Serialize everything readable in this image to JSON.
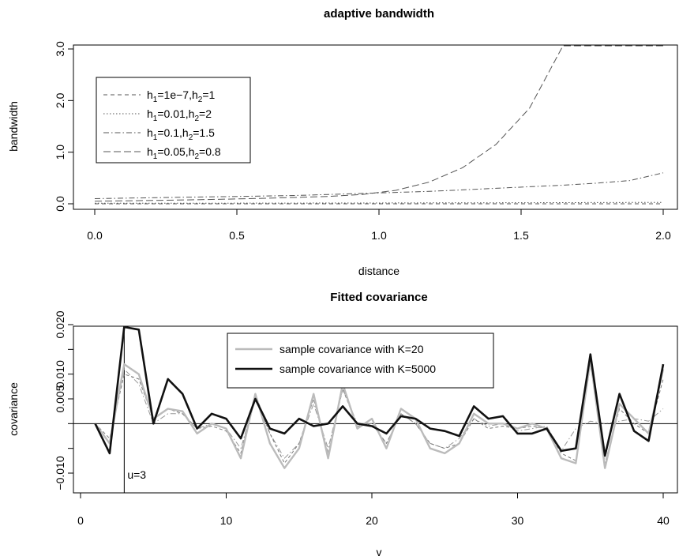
{
  "chart_data": [
    {
      "type": "line",
      "title": "adaptive bandwidth",
      "xlabel": "distance",
      "ylabel": "bandwidth",
      "xlim": [
        0,
        2
      ],
      "ylim": [
        0,
        3
      ],
      "xticks": [
        "0.0",
        "0.5",
        "1.0",
        "1.5",
        "2.0"
      ],
      "yticks": [
        "0.0",
        "1.0",
        "2.0",
        "3.0"
      ],
      "grid": false,
      "legend_position": "top-left",
      "x": [
        0,
        0.1176,
        0.2353,
        0.3529,
        0.4706,
        0.5882,
        0.7059,
        0.8235,
        0.9412,
        1.0588,
        1.1765,
        1.2941,
        1.4118,
        1.5294,
        1.6471,
        1.7647,
        1.8824,
        2.0
      ],
      "series": [
        {
          "name": "h1=1e−7,h2=1",
          "legend_parts": [
            "h",
            "1",
            "=1e−7,h",
            "2",
            "=1"
          ],
          "dash": "5,4",
          "color": "#555555",
          "values": [
            0.0,
            0.0,
            0.0,
            0.0,
            0.0,
            0.0,
            0.0,
            0.0,
            0.0,
            0.0,
            0.0,
            0.0,
            0.0,
            0.0,
            0.0,
            0.0,
            0.0,
            0.0
          ]
        },
        {
          "name": "h1=0.01,h2=2",
          "legend_parts": [
            "h",
            "1",
            "=0.01,h",
            "2",
            "=2"
          ],
          "dash": "1.5,2.5",
          "color": "#555555",
          "values": [
            0.01,
            0.0106,
            0.0113,
            0.0119,
            0.0127,
            0.0134,
            0.0142,
            0.0151,
            0.016,
            0.017,
            0.018,
            0.0191,
            0.0203,
            0.0215,
            0.0228,
            0.0242,
            0.0256,
            0.0272
          ]
        },
        {
          "name": "h1=0.1,h2=1.5",
          "legend_parts": [
            "h",
            "1",
            "=0.1,h",
            "2",
            "=1.5"
          ],
          "dash": "7,3,1.5,3",
          "color": "#555555",
          "values": [
            0.1,
            0.11,
            0.12,
            0.13,
            0.14,
            0.15,
            0.16,
            0.18,
            0.2,
            0.22,
            0.24,
            0.27,
            0.3,
            0.33,
            0.36,
            0.4,
            0.45,
            0.6
          ]
        },
        {
          "name": "h1=0.05,h2=0.8",
          "legend_parts": [
            "h",
            "1",
            "=0.05,h",
            "2",
            "=0.8"
          ],
          "dash": "9,4",
          "color": "#555555",
          "values": [
            0.05,
            0.058,
            0.067,
            0.078,
            0.09,
            0.105,
            0.122,
            0.142,
            0.18,
            0.26,
            0.42,
            0.7,
            1.15,
            1.85,
            3.1,
            3.1,
            3.1,
            3.1
          ]
        }
      ]
    },
    {
      "type": "line",
      "title": "Fitted covariance",
      "xlabel": "v",
      "ylabel": "covariance",
      "xlim": [
        0,
        40
      ],
      "ylim": [
        -0.013,
        0.022
      ],
      "xticks": [
        "0",
        "10",
        "20",
        "30",
        "40"
      ],
      "yticks": [
        "−0.010",
        "0.005",
        "0.020"
      ],
      "yticks_extra_labels": [
        "0.010"
      ],
      "grid": false,
      "legend_position": "top-center",
      "hline": 0,
      "vline": 3,
      "vline_label": "u=3",
      "x": [
        1,
        2,
        3,
        4,
        5,
        6,
        7,
        8,
        9,
        10,
        11,
        12,
        13,
        14,
        15,
        16,
        17,
        18,
        19,
        20,
        21,
        22,
        23,
        24,
        25,
        26,
        27,
        28,
        29,
        30,
        31,
        32,
        33,
        34,
        35,
        36,
        37,
        38,
        39,
        40
      ],
      "series": [
        {
          "name": "sample covariance with K=20",
          "color": "#bbbbbb",
          "width": 2.4,
          "values": [
            0.0,
            -0.004,
            0.012,
            0.01,
            0.001,
            0.003,
            0.0025,
            -0.002,
            0.0,
            -0.001,
            -0.007,
            0.006,
            -0.004,
            -0.009,
            -0.005,
            0.006,
            -0.007,
            0.008,
            -0.001,
            0.001,
            -0.005,
            0.003,
            0.001,
            -0.005,
            -0.006,
            -0.004,
            0.002,
            0.0,
            0.0,
            -0.001,
            0.0,
            -0.001,
            -0.007,
            -0.008,
            0.013,
            -0.009,
            0.004,
            0.001,
            -0.002,
            0.011
          ]
        },
        {
          "name": "sample covariance with K=5000",
          "color": "#111111",
          "width": 2.6,
          "values": [
            0.0,
            -0.006,
            0.021,
            0.019,
            0.0,
            0.009,
            0.006,
            -0.001,
            0.002,
            0.001,
            -0.003,
            0.005,
            -0.001,
            -0.002,
            0.001,
            -0.0005,
            0.0,
            0.0035,
            0.0,
            -0.0005,
            -0.002,
            0.0015,
            0.001,
            -0.001,
            -0.0015,
            -0.0025,
            0.0035,
            0.001,
            0.0015,
            -0.002,
            -0.002,
            -0.001,
            -0.0055,
            -0.005,
            0.014,
            -0.0065,
            0.006,
            -0.0015,
            -0.0035,
            0.012
          ]
        },
        {
          "name": "",
          "color": "#777777",
          "width": 1,
          "dash": "4,3",
          "values": [
            0.0,
            -0.003,
            0.01,
            0.009,
            0.001,
            0.003,
            0.002,
            -0.001,
            -0.0005,
            -0.0015,
            -0.006,
            0.006,
            -0.002,
            -0.008,
            -0.004,
            0.005,
            -0.006,
            0.007,
            -0.0005,
            0.0,
            -0.004,
            0.002,
            0.0,
            -0.004,
            -0.005,
            -0.004,
            0.001,
            -0.001,
            -0.0005,
            -0.001,
            -0.0005,
            -0.001,
            -0.006,
            -0.0075,
            0.012,
            -0.008,
            0.003,
            0.0,
            -0.002,
            0.009
          ]
        },
        {
          "name": "",
          "color": "#999999",
          "width": 1,
          "dash": "7,3,1.5,3",
          "values": [
            0.0,
            -0.004,
            0.011,
            0.008,
            0.0,
            0.002,
            0.002,
            -0.001,
            0.0,
            -0.001,
            -0.005,
            0.005,
            -0.002,
            -0.007,
            -0.004,
            0.004,
            -0.005,
            0.007,
            0.0,
            0.0,
            -0.004,
            0.002,
            0.0,
            -0.004,
            -0.005,
            -0.003,
            0.001,
            -0.0005,
            0.0,
            -0.0015,
            -0.001,
            -0.0005,
            -0.0055,
            -0.001,
            0.0005,
            0.0,
            0.0005,
            0.001,
            0.0005,
            0.003
          ]
        }
      ]
    }
  ]
}
